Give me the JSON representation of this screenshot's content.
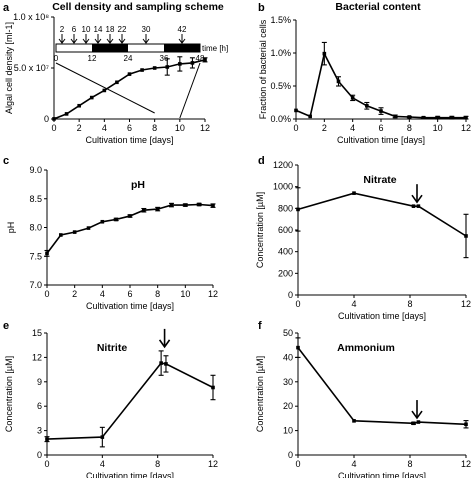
{
  "chart_data": [
    {
      "panel": "a",
      "type": "line",
      "title": "Cell density and sampling scheme",
      "xlabel": "Cultivation time [days]",
      "ylabel": "Algal cell density [ml-1]",
      "xlim": [
        0,
        12
      ],
      "ylim": [
        0,
        100000000.0
      ],
      "xticks": [
        0,
        2,
        4,
        6,
        8,
        10,
        12
      ],
      "yticks": [
        0,
        50000000.0,
        100000000.0
      ],
      "ytick_labels": [
        "0",
        "5.0 x 10⁷",
        "1.0 x 10⁸"
      ],
      "x": [
        0,
        1,
        2,
        3,
        4,
        5,
        6,
        7,
        8,
        9,
        10,
        11,
        12
      ],
      "values": [
        100000.0,
        5000000.0,
        13000000.0,
        21000000.0,
        28000000.0,
        36000000.0,
        44000000.0,
        48000000.0,
        50000000.0,
        51000000.0,
        54000000.0,
        55000000.0,
        58000000.0
      ],
      "errors": [
        0,
        0,
        0,
        0,
        0,
        0,
        0,
        0,
        0,
        8000000.0,
        7000000.0,
        5000000.0,
        2000000.0
      ],
      "inset": {
        "xlabel": "time [h]",
        "xticks": [
          0,
          12,
          24,
          36,
          48
        ],
        "xlim": [
          0,
          48
        ],
        "sampling_times": [
          "2",
          "6",
          "10",
          "14",
          "18",
          "22",
          "30",
          "42"
        ],
        "sampling_values": [
          2,
          6,
          10,
          14,
          18,
          22,
          30,
          42
        ],
        "dark_periods": [
          [
            12,
            24
          ],
          [
            36,
            48
          ]
        ]
      }
    },
    {
      "panel": "b",
      "type": "line",
      "title": "Bacterial content",
      "xlabel": "Cultivation time [days]",
      "ylabel": "Fraction of bacterial cells",
      "xlim": [
        0,
        12
      ],
      "ylim": [
        0,
        1.5
      ],
      "xticks": [
        0,
        2,
        4,
        6,
        8,
        10,
        12
      ],
      "yticks": [
        0,
        0.5,
        1.0,
        1.5
      ],
      "ytick_labels": [
        "0.0%",
        "0.5%",
        "1.0%",
        "1.5%"
      ],
      "x": [
        0,
        1,
        2,
        3,
        4,
        5,
        6,
        7,
        8,
        9,
        10,
        11,
        12
      ],
      "values": [
        0.13,
        0.04,
        0.99,
        0.57,
        0.32,
        0.2,
        0.12,
        0.04,
        0.03,
        0.02,
        0.02,
        0.02,
        0.02
      ],
      "errors": [
        0,
        0,
        0.17,
        0.07,
        0.04,
        0.05,
        0.05,
        0.02,
        0.01,
        0.01,
        0.02,
        0.02,
        0.02
      ]
    },
    {
      "panel": "c",
      "type": "line",
      "title": "pH",
      "xlabel": "Cultivation time [days]",
      "ylabel": "pH",
      "xlim": [
        0,
        12
      ],
      "ylim": [
        7.0,
        9.0
      ],
      "xticks": [
        0,
        2,
        4,
        6,
        8,
        10,
        12
      ],
      "yticks": [
        7.0,
        7.5,
        8.0,
        8.5,
        9.0
      ],
      "ytick_labels": [
        "7.0",
        "7.5",
        "8.0",
        "8.5",
        "9.0"
      ],
      "x": [
        0,
        1,
        2,
        3,
        4,
        5,
        6,
        7,
        8,
        9,
        10,
        11,
        12
      ],
      "values": [
        7.55,
        7.87,
        7.92,
        7.99,
        8.1,
        8.14,
        8.2,
        8.3,
        8.32,
        8.39,
        8.39,
        8.4,
        8.38
      ],
      "errors": [
        0.05,
        0,
        0,
        0,
        0,
        0.02,
        0.02,
        0.03,
        0.03,
        0.03,
        0.02,
        0.02,
        0.03
      ]
    },
    {
      "panel": "d",
      "type": "line",
      "title": "Nitrate",
      "xlabel": "Cultivation time [days]",
      "ylabel": "Concentration [µM]",
      "xlim": [
        0,
        12
      ],
      "ylim": [
        0,
        1200
      ],
      "xticks": [
        0,
        4,
        8,
        12
      ],
      "yticks": [
        0,
        200,
        400,
        600,
        800,
        1000,
        1200
      ],
      "ytick_labels": [
        "0",
        "200",
        "400",
        "600",
        "800",
        "1000",
        "1200"
      ],
      "x": [
        0,
        4,
        8.25,
        8.6,
        12
      ],
      "values": [
        790,
        940,
        820,
        820,
        545
      ],
      "errors": [
        200,
        0,
        0,
        0,
        200
      ],
      "arrow_at": 8.5
    },
    {
      "panel": "e",
      "type": "line",
      "title": "Nitrite",
      "xlabel": "Cultivation time [days]",
      "ylabel": "Concentration [µM]",
      "xlim": [
        0,
        12
      ],
      "ylim": [
        0,
        15
      ],
      "xticks": [
        0,
        4,
        8,
        12
      ],
      "yticks": [
        0,
        3,
        6,
        9,
        12,
        15
      ],
      "ytick_labels": [
        "0",
        "3",
        "6",
        "9",
        "12",
        "15"
      ],
      "x": [
        0,
        4,
        8.25,
        8.6,
        12
      ],
      "values": [
        1.95,
        2.2,
        11.3,
        11.2,
        8.3
      ],
      "errors": [
        0.3,
        1.2,
        1.5,
        1.0,
        1.5
      ],
      "arrow_at": 8.5
    },
    {
      "panel": "f",
      "type": "line",
      "title": "Ammonium",
      "xlabel": "Cultivation time [days]",
      "ylabel": "Concentration [µM]",
      "xlim": [
        0,
        12
      ],
      "ylim": [
        0,
        50
      ],
      "xticks": [
        0,
        4,
        8,
        12
      ],
      "yticks": [
        0,
        10,
        20,
        30,
        40,
        50
      ],
      "ytick_labels": [
        "0",
        "10",
        "20",
        "30",
        "40",
        "50"
      ],
      "x": [
        0,
        4,
        8.25,
        8.6,
        12
      ],
      "values": [
        44,
        14,
        13,
        13.5,
        12.6
      ],
      "errors": [
        4,
        0,
        0.4,
        0,
        1.5
      ],
      "arrow_at": 8.5
    }
  ]
}
